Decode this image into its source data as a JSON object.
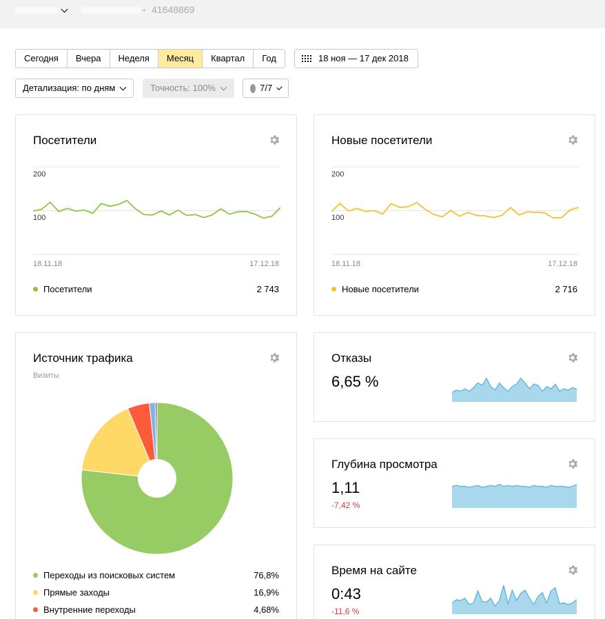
{
  "topbar": {
    "counter_id": "41648869"
  },
  "periods": [
    "Сегодня",
    "Вчера",
    "Неделя",
    "Месяц",
    "Квартал",
    "Год"
  ],
  "active_period": "Месяц",
  "date_range": "18 ноя — 17 дек 2018",
  "detail_label": "Детализация: по дням",
  "accuracy_label": "Точность: 100%",
  "segments_label": "7/7",
  "visitors": {
    "title": "Посетители",
    "y_top": "200",
    "y_mid": "100",
    "date_start": "18.11.18",
    "date_end": "17.12.18",
    "legend": "Посетители",
    "total": "2 743",
    "color": "#8dc63f",
    "chart_data": {
      "type": "line",
      "x": [
        "18.11.18",
        "",
        "",
        "",
        "",
        "",
        "",
        "",
        "",
        "",
        "",
        "",
        "",
        "",
        "",
        "",
        "",
        "",
        "",
        "",
        "",
        "",
        "",
        "",
        "",
        "",
        "",
        "",
        "",
        "17.12.18"
      ],
      "values": [
        99,
        103,
        119,
        98,
        105,
        99,
        101,
        94,
        116,
        110,
        114,
        123,
        104,
        91,
        90,
        99,
        90,
        101,
        89,
        91,
        84,
        90,
        104,
        92,
        97,
        98,
        92,
        83,
        87,
        107
      ],
      "ylim": [
        0,
        200
      ]
    }
  },
  "new_visitors": {
    "title": "Новые посетители",
    "y_top": "200",
    "y_mid": "100",
    "date_start": "18.11.18",
    "date_end": "17.12.18",
    "legend": "Новые посетители",
    "total": "2 716",
    "color": "#f5c22b",
    "chart_data": {
      "type": "line",
      "x": [
        "18.11.18",
        "",
        "",
        "",
        "",
        "",
        "",
        "",
        "",
        "",
        "",
        "",
        "",
        "",
        "",
        "",
        "",
        "",
        "",
        "",
        "",
        "",
        "",
        "",
        "",
        "",
        "",
        "",
        "",
        "17.12.18"
      ],
      "values": [
        98,
        116,
        99,
        105,
        98,
        100,
        92,
        116,
        107,
        109,
        118,
        103,
        91,
        86,
        100,
        87,
        96,
        89,
        88,
        84,
        89,
        107,
        90,
        97,
        96,
        95,
        83,
        84,
        102,
        107
      ],
      "ylim": [
        0,
        200
      ]
    }
  },
  "traffic": {
    "title": "Источник трафика",
    "subtitle": "Визиты",
    "legend": [
      {
        "label": "Переходы из поисковых систем",
        "value": "76,8%",
        "color": "#97cc64"
      },
      {
        "label": "Прямые заходы",
        "value": "16,9%",
        "color": "#fed965"
      },
      {
        "label": "Внутренние переходы",
        "value": "4,68%",
        "color": "#fd5b3c"
      }
    ],
    "chart_data": {
      "type": "pie",
      "categories": [
        "Переходы из поисковых систем",
        "Прямые заходы",
        "Внутренние переходы",
        "",
        ""
      ],
      "values": [
        76.8,
        16.9,
        4.68,
        1.2,
        0.42
      ],
      "colors": [
        "#97cc64",
        "#fed965",
        "#fd5b3c",
        "#7fb2e5",
        "#8a6fa8"
      ]
    }
  },
  "bounces": {
    "title": "Отказы",
    "value": "6,65 %",
    "spark": [
      8,
      10,
      9,
      11,
      9,
      12,
      16,
      14,
      20,
      13,
      10,
      16,
      12,
      9,
      13,
      15,
      20,
      16,
      11,
      15,
      14,
      9,
      13,
      11,
      15,
      9,
      11,
      10,
      12,
      11
    ]
  },
  "depth": {
    "title": "Глубина просмотра",
    "value": "1,11",
    "delta": "-7,42 %",
    "spark": [
      22,
      23,
      22,
      22,
      21,
      22,
      23,
      21,
      22,
      23,
      22,
      24,
      22,
      23,
      22,
      23,
      22,
      22,
      21,
      23,
      22,
      22,
      21,
      23,
      22,
      22,
      22,
      21,
      22,
      24
    ]
  },
  "time": {
    "title": "Время на сайте",
    "value": "0:43",
    "delta": "-11,6 %",
    "spark": [
      14,
      18,
      17,
      20,
      12,
      14,
      29,
      16,
      15,
      20,
      10,
      17,
      36,
      13,
      30,
      17,
      26,
      30,
      20,
      12,
      22,
      27,
      14,
      29,
      33,
      13,
      14,
      12,
      14,
      18
    ]
  }
}
